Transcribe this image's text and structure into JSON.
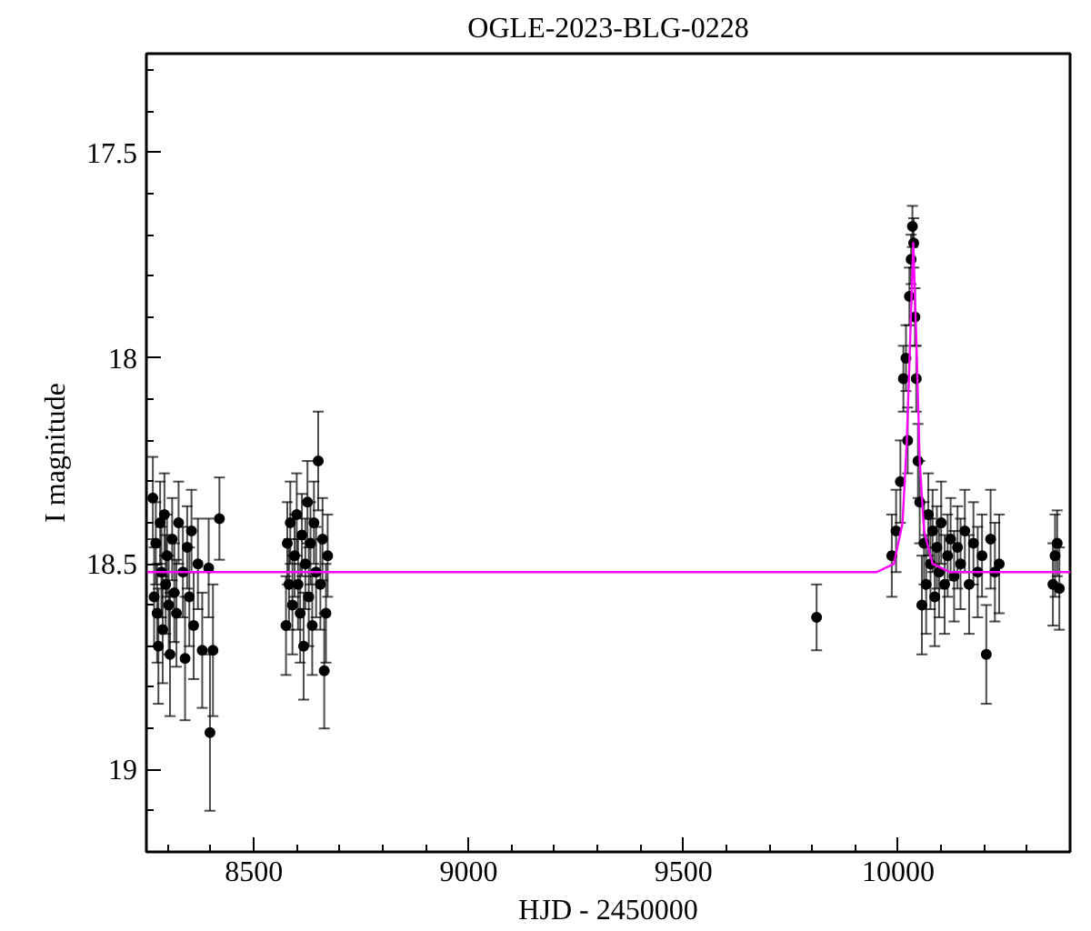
{
  "chart_data": {
    "type": "scatter",
    "title": "OGLE-2023-BLG-0228",
    "xlabel": "HJD - 2450000",
    "ylabel": "I magnitude",
    "xlim": [
      8250,
      10400
    ],
    "xticks": [
      8500,
      9000,
      9500,
      10000
    ],
    "ylim": [
      19.2,
      17.26
    ],
    "yticks": [
      17.5,
      18,
      18.5,
      19
    ],
    "grid": false,
    "series": [
      {
        "marker": "circle",
        "color": "#000000",
        "x": [
          8265,
          8268,
          8272,
          8275,
          8278,
          8282,
          8285,
          8288,
          8292,
          8295,
          8298,
          8302,
          8305,
          8310,
          8315,
          8320,
          8325,
          8335,
          8340,
          8345,
          8350,
          8355,
          8360,
          8370,
          8380,
          8395,
          8398,
          8405,
          8420,
          8575,
          8578,
          8582,
          8585,
          8590,
          8595,
          8600,
          8603,
          8608,
          8612,
          8616,
          8620,
          8625,
          8628,
          8632,
          8636,
          8640,
          8645,
          8650,
          8655,
          8660,
          8664,
          8668,
          8672,
          9810,
          9985,
          9995,
          10005,
          10012,
          10018,
          10022,
          10026,
          10030,
          10033,
          10036,
          10039,
          10042,
          10046,
          10050,
          10055,
          10060,
          10065,
          10070,
          10075,
          10080,
          10085,
          10090,
          10095,
          10100,
          10108,
          10115,
          10122,
          10130,
          10138,
          10145,
          10155,
          10165,
          10175,
          10185,
          10195,
          10205,
          10215,
          10225,
          10235,
          10360,
          10365,
          10370,
          10375
        ],
        "values": [
          18.34,
          18.58,
          18.45,
          18.62,
          18.7,
          18.4,
          18.52,
          18.66,
          18.38,
          18.55,
          18.48,
          18.6,
          18.72,
          18.44,
          18.57,
          18.62,
          18.4,
          18.52,
          18.73,
          18.46,
          18.58,
          18.42,
          18.65,
          18.5,
          18.71,
          18.51,
          18.91,
          18.71,
          18.39,
          18.65,
          18.45,
          18.55,
          18.4,
          18.6,
          18.48,
          18.38,
          18.55,
          18.62,
          18.43,
          18.7,
          18.5,
          18.35,
          18.58,
          18.45,
          18.65,
          18.4,
          18.52,
          18.25,
          18.55,
          18.44,
          18.76,
          18.62,
          18.48,
          18.63,
          18.48,
          18.42,
          18.3,
          18.05,
          18.0,
          18.2,
          17.85,
          17.76,
          17.68,
          17.72,
          17.9,
          18.05,
          18.25,
          18.35,
          18.6,
          18.45,
          18.55,
          18.38,
          18.5,
          18.42,
          18.58,
          18.46,
          18.52,
          18.4,
          18.55,
          18.48,
          18.44,
          18.53,
          18.46,
          18.5,
          18.42,
          18.55,
          18.45,
          18.52,
          18.48,
          18.72,
          18.44,
          18.52,
          18.5,
          18.55,
          18.48,
          18.45,
          18.56
        ],
        "errors": [
          0.1,
          0.12,
          0.1,
          0.12,
          0.14,
          0.1,
          0.11,
          0.13,
          0.1,
          0.12,
          0.1,
          0.12,
          0.15,
          0.1,
          0.12,
          0.13,
          0.1,
          0.11,
          0.15,
          0.1,
          0.12,
          0.1,
          0.13,
          0.11,
          0.14,
          0.12,
          0.19,
          0.16,
          0.1,
          0.12,
          0.1,
          0.11,
          0.1,
          0.12,
          0.1,
          0.1,
          0.11,
          0.12,
          0.1,
          0.13,
          0.11,
          0.1,
          0.12,
          0.1,
          0.12,
          0.1,
          0.11,
          0.12,
          0.11,
          0.1,
          0.14,
          0.12,
          0.1,
          0.08,
          0.1,
          0.1,
          0.1,
          0.08,
          0.08,
          0.08,
          0.07,
          0.06,
          0.05,
          0.06,
          0.07,
          0.08,
          0.09,
          0.1,
          0.12,
          0.1,
          0.12,
          0.1,
          0.11,
          0.1,
          0.12,
          0.1,
          0.11,
          0.1,
          0.12,
          0.1,
          0.1,
          0.11,
          0.1,
          0.11,
          0.1,
          0.12,
          0.1,
          0.11,
          0.1,
          0.12,
          0.12,
          0.12,
          0.12,
          0.1,
          0.1,
          0.08,
          0.1
        ]
      },
      {
        "type": "line",
        "color": "#ff00ff",
        "x": [
          8250,
          9950,
          9990,
          10010,
          10020,
          10028,
          10035,
          10042,
          10050,
          10060,
          10080,
          10120,
          10400
        ],
        "values": [
          18.52,
          18.52,
          18.5,
          18.4,
          18.2,
          17.95,
          17.72,
          17.95,
          18.25,
          18.42,
          18.5,
          18.52,
          18.52
        ]
      }
    ]
  }
}
